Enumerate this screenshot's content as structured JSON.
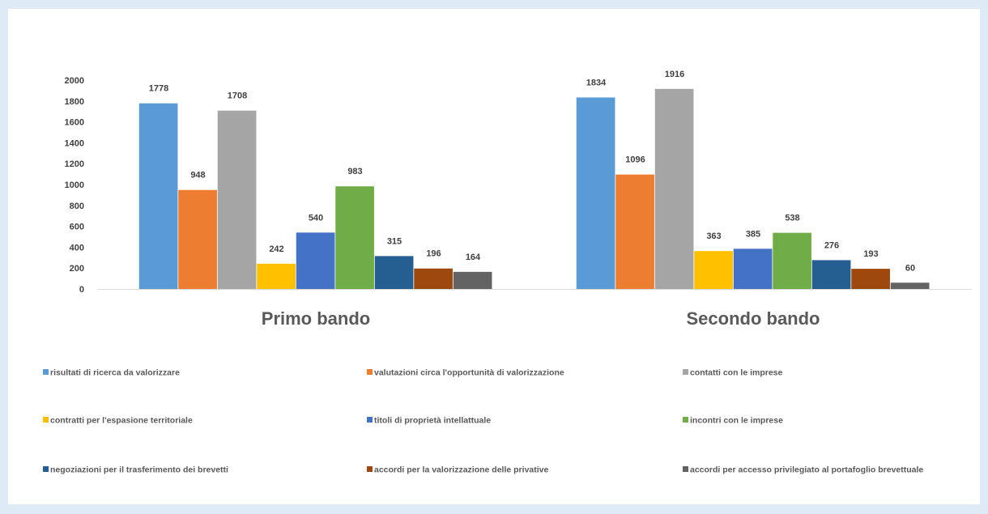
{
  "chart_data": {
    "type": "bar",
    "categories": [
      "Primo bando",
      "Secondo bando"
    ],
    "ylim": [
      0,
      2000
    ],
    "yticks": [
      0,
      200,
      400,
      600,
      800,
      1000,
      1200,
      1400,
      1600,
      1800,
      2000
    ],
    "grid": false,
    "legend_position": "bottom",
    "series": [
      {
        "name": "risultati di ricerca da valorizzare",
        "color": "#5b9bd5",
        "values": [
          1778,
          1834
        ]
      },
      {
        "name": "valutazioni circa l'opportunità di valorizzazione",
        "color": "#ed7d31",
        "values": [
          948,
          1096
        ]
      },
      {
        "name": "contatti con le imprese",
        "color": "#a5a5a5",
        "values": [
          1708,
          1916
        ]
      },
      {
        "name": "contratti per l'espasione territoriale",
        "color": "#ffc000",
        "values": [
          242,
          363
        ]
      },
      {
        "name": "titoli di proprietà intellattuale",
        "color": "#4472c4",
        "values": [
          540,
          385
        ]
      },
      {
        "name": "incontri con le imprese",
        "color": "#70ad47",
        "values": [
          983,
          538
        ]
      },
      {
        "name": "negoziazioni per il trasferimento dei brevetti",
        "color": "#255e91",
        "values": [
          315,
          276
        ]
      },
      {
        "name": "accordi per la valorizzazione delle privative",
        "color": "#9e480e",
        "values": [
          196,
          193
        ]
      },
      {
        "name": "accordi per accesso privilegiato al portafoglio brevettuale",
        "color": "#636363",
        "values": [
          164,
          60
        ]
      }
    ]
  }
}
